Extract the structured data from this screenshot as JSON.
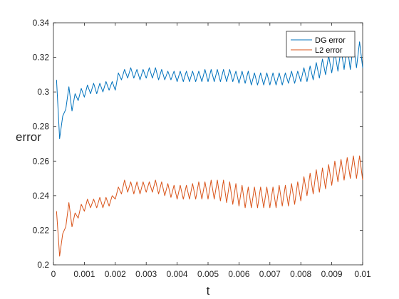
{
  "chart_data": {
    "type": "line",
    "title": "",
    "xlabel": "t",
    "ylabel": "error",
    "xlim": [
      0,
      0.01
    ],
    "ylim": [
      0.2,
      0.34
    ],
    "xticks": [
      "0",
      "0.001",
      "0.002",
      "0.003",
      "0.004",
      "0.005",
      "0.006",
      "0.007",
      "0.008",
      "0.009",
      "0.01"
    ],
    "yticks": [
      "0.2",
      "0.22",
      "0.24",
      "0.26",
      "0.28",
      "0.3",
      "0.32",
      "0.34"
    ],
    "grid": false,
    "legend_position": "top-right",
    "series": [
      {
        "name": "DG error",
        "color": "#0072BD",
        "x": [
          0.0001,
          0.0002,
          0.0003,
          0.0004,
          0.0005,
          0.0006,
          0.0007,
          0.0008,
          0.0009,
          0.001,
          0.0011,
          0.0012,
          0.0013,
          0.0014,
          0.0015,
          0.0016,
          0.0017,
          0.0018,
          0.0019,
          0.002,
          0.0021,
          0.0022,
          0.0023,
          0.0024,
          0.0025,
          0.0026,
          0.0027,
          0.0028,
          0.0029,
          0.003,
          0.0031,
          0.0032,
          0.0033,
          0.0034,
          0.0035,
          0.0036,
          0.0037,
          0.0038,
          0.0039,
          0.004,
          0.0041,
          0.0042,
          0.0043,
          0.0044,
          0.0045,
          0.0046,
          0.0047,
          0.0048,
          0.0049,
          0.005,
          0.0051,
          0.0052,
          0.0053,
          0.0054,
          0.0055,
          0.0056,
          0.0057,
          0.0058,
          0.0059,
          0.006,
          0.0061,
          0.0062,
          0.0063,
          0.0064,
          0.0065,
          0.0066,
          0.0067,
          0.0068,
          0.0069,
          0.007,
          0.0071,
          0.0072,
          0.0073,
          0.0074,
          0.0075,
          0.0076,
          0.0077,
          0.0078,
          0.0079,
          0.008,
          0.0081,
          0.0082,
          0.0083,
          0.0084,
          0.0085,
          0.0086,
          0.0087,
          0.0088,
          0.0089,
          0.009,
          0.0091,
          0.0092,
          0.0093,
          0.0094,
          0.0095,
          0.0096,
          0.0097,
          0.0098,
          0.0099,
          0.01
        ],
        "values": [
          0.307,
          0.273,
          0.286,
          0.29,
          0.303,
          0.289,
          0.299,
          0.295,
          0.302,
          0.297,
          0.304,
          0.299,
          0.305,
          0.299,
          0.305,
          0.3,
          0.306,
          0.301,
          0.306,
          0.301,
          0.311,
          0.307,
          0.313,
          0.308,
          0.314,
          0.308,
          0.313,
          0.307,
          0.313,
          0.308,
          0.314,
          0.308,
          0.314,
          0.307,
          0.313,
          0.307,
          0.312,
          0.307,
          0.312,
          0.306,
          0.312,
          0.306,
          0.312,
          0.306,
          0.312,
          0.306,
          0.312,
          0.306,
          0.313,
          0.306,
          0.313,
          0.306,
          0.313,
          0.306,
          0.313,
          0.306,
          0.313,
          0.306,
          0.312,
          0.305,
          0.312,
          0.305,
          0.312,
          0.304,
          0.311,
          0.304,
          0.311,
          0.304,
          0.311,
          0.304,
          0.311,
          0.304,
          0.311,
          0.304,
          0.311,
          0.305,
          0.312,
          0.305,
          0.312,
          0.306,
          0.314,
          0.306,
          0.315,
          0.307,
          0.317,
          0.308,
          0.319,
          0.31,
          0.321,
          0.311,
          0.323,
          0.312,
          0.325,
          0.313,
          0.327,
          0.313,
          0.328,
          0.314,
          0.329,
          0.314
        ]
      },
      {
        "name": "L2 error",
        "color": "#D95319",
        "x": [
          0.0001,
          0.0002,
          0.0003,
          0.0004,
          0.0005,
          0.0006,
          0.0007,
          0.0008,
          0.0009,
          0.001,
          0.0011,
          0.0012,
          0.0013,
          0.0014,
          0.0015,
          0.0016,
          0.0017,
          0.0018,
          0.0019,
          0.002,
          0.0021,
          0.0022,
          0.0023,
          0.0024,
          0.0025,
          0.0026,
          0.0027,
          0.0028,
          0.0029,
          0.003,
          0.0031,
          0.0032,
          0.0033,
          0.0034,
          0.0035,
          0.0036,
          0.0037,
          0.0038,
          0.0039,
          0.004,
          0.0041,
          0.0042,
          0.0043,
          0.0044,
          0.0045,
          0.0046,
          0.0047,
          0.0048,
          0.0049,
          0.005,
          0.0051,
          0.0052,
          0.0053,
          0.0054,
          0.0055,
          0.0056,
          0.0057,
          0.0058,
          0.0059,
          0.006,
          0.0061,
          0.0062,
          0.0063,
          0.0064,
          0.0065,
          0.0066,
          0.0067,
          0.0068,
          0.0069,
          0.007,
          0.0071,
          0.0072,
          0.0073,
          0.0074,
          0.0075,
          0.0076,
          0.0077,
          0.0078,
          0.0079,
          0.008,
          0.0081,
          0.0082,
          0.0083,
          0.0084,
          0.0085,
          0.0086,
          0.0087,
          0.0088,
          0.0089,
          0.009,
          0.0091,
          0.0092,
          0.0093,
          0.0094,
          0.0095,
          0.0096,
          0.0097,
          0.0098,
          0.0099,
          0.01
        ],
        "values": [
          0.231,
          0.205,
          0.218,
          0.222,
          0.236,
          0.222,
          0.23,
          0.227,
          0.235,
          0.231,
          0.238,
          0.233,
          0.238,
          0.233,
          0.239,
          0.233,
          0.239,
          0.234,
          0.24,
          0.238,
          0.245,
          0.241,
          0.249,
          0.242,
          0.248,
          0.241,
          0.248,
          0.241,
          0.248,
          0.242,
          0.248,
          0.242,
          0.249,
          0.241,
          0.248,
          0.24,
          0.247,
          0.239,
          0.246,
          0.238,
          0.246,
          0.238,
          0.246,
          0.238,
          0.247,
          0.238,
          0.248,
          0.238,
          0.248,
          0.238,
          0.249,
          0.238,
          0.249,
          0.237,
          0.249,
          0.236,
          0.248,
          0.235,
          0.247,
          0.234,
          0.246,
          0.233,
          0.245,
          0.233,
          0.245,
          0.233,
          0.245,
          0.233,
          0.245,
          0.233,
          0.245,
          0.233,
          0.246,
          0.234,
          0.246,
          0.234,
          0.247,
          0.235,
          0.248,
          0.237,
          0.251,
          0.24,
          0.253,
          0.241,
          0.255,
          0.242,
          0.256,
          0.244,
          0.258,
          0.246,
          0.26,
          0.248,
          0.261,
          0.249,
          0.262,
          0.25,
          0.263,
          0.25,
          0.263,
          0.249
        ]
      }
    ]
  }
}
